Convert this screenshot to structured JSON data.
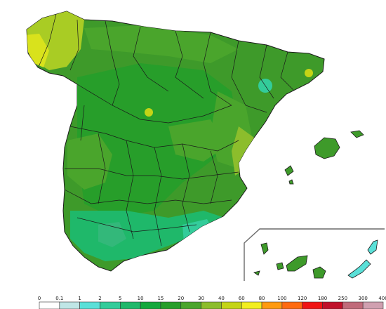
{
  "map": {
    "region": "Spain",
    "islands": [
      "Balearic Islands",
      "Canary Islands"
    ],
    "land_fill": "#3e9a2a",
    "border_color": "#1a1a1a"
  },
  "legend": {
    "labels": [
      "0",
      "0.1",
      "1",
      "2",
      "5",
      "10",
      "15",
      "20",
      "30",
      "40",
      "60",
      "80",
      "100",
      "120",
      "180",
      "250",
      "300",
      "400"
    ],
    "colors": [
      "#ffffff",
      "#bfe6e6",
      "#5ae0d8",
      "#33cc9a",
      "#1fb86a",
      "#14a83c",
      "#279e2a",
      "#4aa52c",
      "#8cbd2c",
      "#c4d416",
      "#f2ee20",
      "#ff9a10",
      "#ff6a10",
      "#f01414",
      "#c0102a",
      "#c06a7a",
      "#d0a0b0",
      "#f0d4dc"
    ]
  }
}
